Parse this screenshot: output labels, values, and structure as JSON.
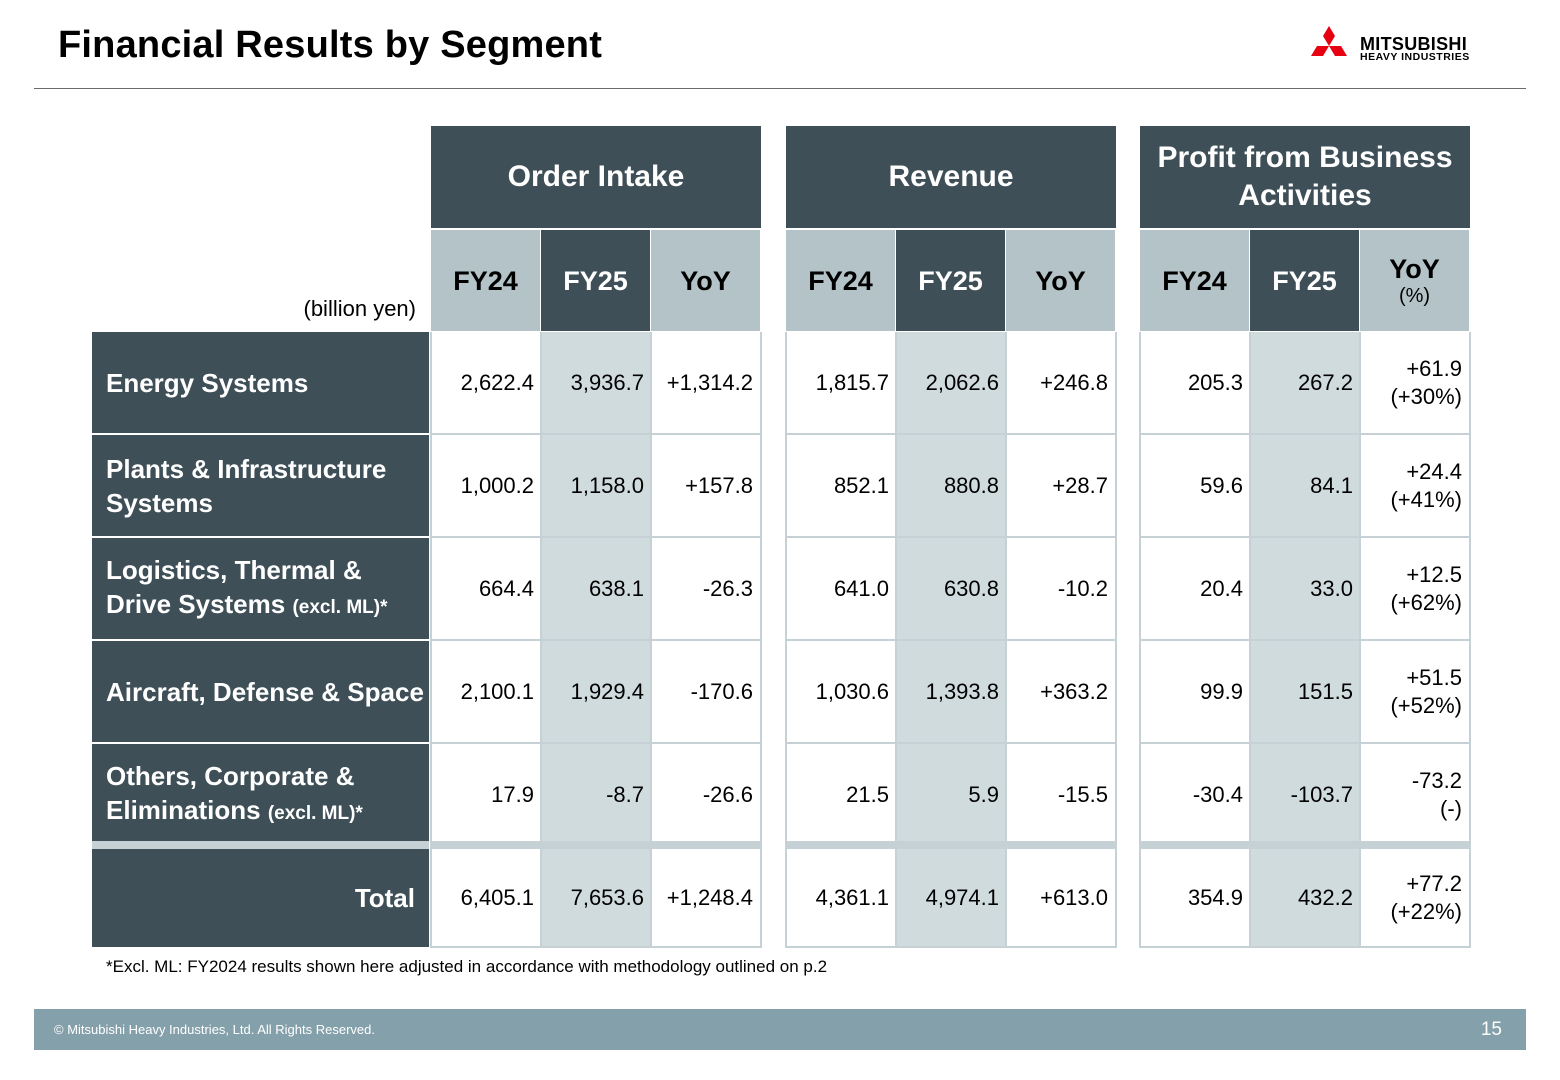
{
  "title": "Financial Results by Segment",
  "logo": {
    "line1": "MITSUBISHI",
    "line2": "HEAVY INDUSTRIES",
    "color": "#e60012"
  },
  "unit": "(billion yen)",
  "groups": [
    {
      "label": "Order Intake",
      "sub": [
        "FY24",
        "FY25",
        "YoY"
      ]
    },
    {
      "label": "Revenue",
      "sub": [
        "FY24",
        "FY25",
        "YoY"
      ]
    },
    {
      "label": "Profit from Business Activities",
      "sub": [
        "FY24",
        "FY25",
        "YoY"
      ],
      "sub_note": "(%)"
    }
  ],
  "rows": [
    {
      "label": "Energy Systems",
      "note": "",
      "order": [
        "2,622.4",
        "3,936.7",
        "+1,314.2"
      ],
      "revenue": [
        "1,815.7",
        "2,062.6",
        "+246.8"
      ],
      "profit": [
        "205.3",
        "267.2",
        "+61.9"
      ],
      "profit_pct": "(+30%)"
    },
    {
      "label": "Plants & Infrastructure Systems",
      "note": "",
      "order": [
        "1,000.2",
        "1,158.0",
        "+157.8"
      ],
      "revenue": [
        "852.1",
        "880.8",
        "+28.7"
      ],
      "profit": [
        "59.6",
        "84.1",
        "+24.4"
      ],
      "profit_pct": "(+41%)"
    },
    {
      "label": "Logistics, Thermal & Drive Systems",
      "note": "(excl. ML)*",
      "order": [
        "664.4",
        "638.1",
        "-26.3"
      ],
      "revenue": [
        "641.0",
        "630.8",
        "-10.2"
      ],
      "profit": [
        "20.4",
        "33.0",
        "+12.5"
      ],
      "profit_pct": "(+62%)"
    },
    {
      "label": "Aircraft, Defense & Space",
      "note": "",
      "order": [
        "2,100.1",
        "1,929.4",
        "-170.6"
      ],
      "revenue": [
        "1,030.6",
        "1,393.8",
        "+363.2"
      ],
      "profit": [
        "99.9",
        "151.5",
        "+51.5"
      ],
      "profit_pct": "(+52%)"
    },
    {
      "label": "Others, Corporate & Eliminations",
      "note": "(excl. ML)*",
      "order": [
        "17.9",
        "-8.7",
        "-26.6"
      ],
      "revenue": [
        "21.5",
        "5.9",
        "-15.5"
      ],
      "profit": [
        "-30.4",
        "-103.7",
        "-73.2"
      ],
      "profit_pct": "(-)"
    }
  ],
  "total": {
    "label": "Total",
    "order": [
      "6,405.1",
      "7,653.6",
      "+1,248.4"
    ],
    "revenue": [
      "4,361.1",
      "4,974.1",
      "+613.0"
    ],
    "profit": [
      "354.9",
      "432.2",
      "+77.2"
    ],
    "profit_pct": "(+22%)"
  },
  "footnote": "*Excl. ML: FY2024 results shown here adjusted in accordance with methodology outlined on p.2",
  "footer": {
    "copyright": "© Mitsubishi Heavy Industries, Ltd.  All Rights Reserved.",
    "page": "15"
  },
  "colors": {
    "header_dark": "#3e4f57",
    "header_light": "#b4c3c8",
    "shade": "#d0dbde",
    "footer": "#84a0aa"
  }
}
